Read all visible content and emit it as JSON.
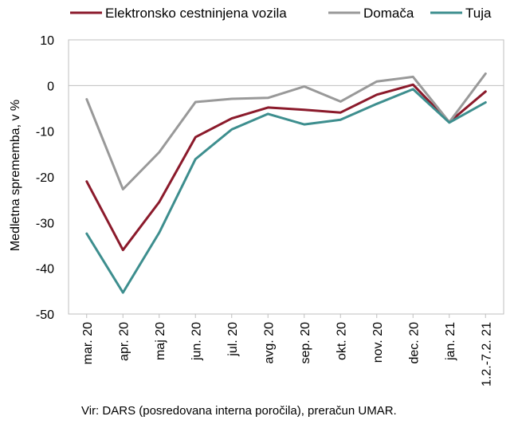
{
  "chart_data": {
    "type": "line",
    "categories": [
      "mar. 20",
      "apr. 20",
      "maj 20",
      "jun. 20",
      "jul. 20",
      "avg. 20",
      "sep. 20",
      "okt. 20",
      "nov. 20",
      "dec. 20",
      "jan. 21",
      "1.2.-7.2. 21"
    ],
    "series": [
      {
        "name": "Elektronsko cestninjena vozila",
        "color": "#8b1a2b",
        "values": [
          -21,
          -36,
          -25.5,
          -11.3,
          -7.2,
          -4.8,
          -5.3,
          -5.9,
          -2,
          0.2,
          -8,
          -1.3
        ]
      },
      {
        "name": "Domača",
        "color": "#999999",
        "values": [
          -3,
          -22.7,
          -14.6,
          -3.6,
          -2.9,
          -2.7,
          -0.2,
          -3.5,
          0.9,
          1.9,
          -8,
          2.6
        ]
      },
      {
        "name": "Tuja",
        "color": "#3d8e8e",
        "values": [
          -32.4,
          -45.3,
          -32.2,
          -16.1,
          -9.6,
          -6.2,
          -8.5,
          -7.5,
          -4,
          -0.8,
          -8.1,
          -3.7
        ]
      }
    ],
    "ylabel": "Medletna sprememba, v %",
    "ylim": [
      -50,
      10
    ],
    "yticks": [
      10,
      0,
      -10,
      -20,
      -30,
      -40,
      -50
    ],
    "legend_position": "top",
    "grid": false
  },
  "source": "Vir: DARS (posredovana interna poročila), preračun UMAR."
}
